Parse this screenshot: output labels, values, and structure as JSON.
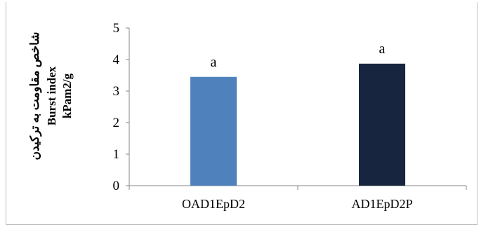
{
  "chart_data": {
    "type": "bar",
    "categories": [
      "OAD1EpD2",
      "AD1EpD2P"
    ],
    "series": [
      {
        "values": [
          3.45,
          3.87
        ],
        "colors": [
          "#4f81bd",
          "#17253f"
        ],
        "data_labels": [
          "a",
          "a"
        ]
      }
    ],
    "ylabel_lines": [
      "شاخص مقاومت به ترکیدن",
      "Burst index",
      "kPam2/g"
    ],
    "xlabel": "",
    "ylim": [
      0,
      5
    ],
    "yticks": [
      0,
      1,
      2,
      3,
      4,
      5
    ],
    "grid": false,
    "legend": "none"
  }
}
